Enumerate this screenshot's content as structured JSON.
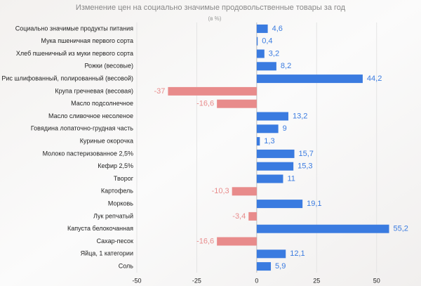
{
  "chart_data": {
    "type": "bar",
    "orientation": "horizontal",
    "title": "Изменение цен на социально значимые продовольственные товары за год",
    "subtitle": "(в %)",
    "categories": [
      "Социально значимые продукты питания",
      "Мука пшеничная первого сорта",
      "Хлеб пшеничный из муки первого сорта",
      "Рожки (весовые)",
      "Рис шлифованный, полированный (весовой)",
      "Крупа гречневая (весовая)",
      "Масло подсолнечное",
      "Масло сливочное несоленое",
      "Говядина лопаточно-грудная часть",
      "Куриные окорочка",
      "Молоко пастеризованное 2,5%",
      "Кефир 2,5%",
      "Творог",
      "Картофель",
      "Морковь",
      "Лук репчатый",
      "Капуста белокочанная",
      "Сахар-песок",
      "Яйца, 1 категории",
      "Соль"
    ],
    "values": [
      4.6,
      0.4,
      3.2,
      8.2,
      44.2,
      -37,
      -16.6,
      13.2,
      9,
      1.3,
      15.7,
      15.3,
      11,
      -10.3,
      19.1,
      -3.4,
      55.2,
      -16.6,
      12.1,
      5.9
    ],
    "value_labels": [
      "4,6",
      "0,4",
      "3,2",
      "8,2",
      "44,2",
      "-37",
      "-16,6",
      "13,2",
      "9",
      "1,3",
      "15,7",
      "15,3",
      "11",
      "-10,3",
      "19,1",
      "-3,4",
      "55,2",
      "-16,6",
      "12,1",
      "5,9"
    ],
    "color": "#3a7be0",
    "negative_color": "#e88b8b",
    "xlim": [
      -50,
      65
    ],
    "xticks": [
      -50,
      -25,
      0,
      25,
      50
    ],
    "grid": true
  }
}
